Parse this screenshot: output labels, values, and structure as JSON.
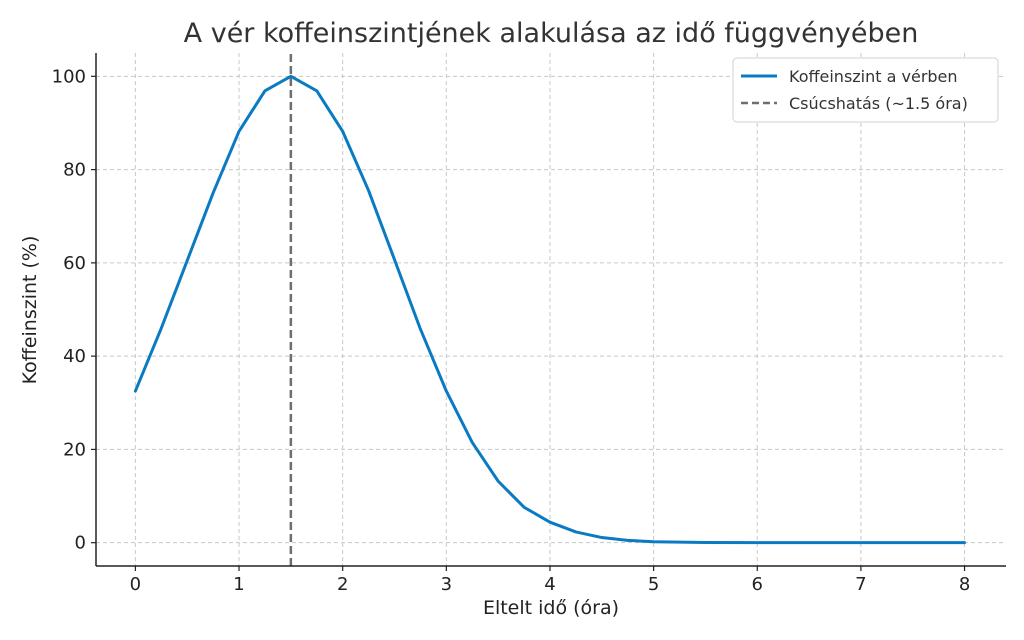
{
  "chart_data": {
    "type": "line",
    "title": "A vér koffeinszintjének alakulása az idő függvényében",
    "xlabel": "Eltelt idő (óra)",
    "ylabel": "Koffeinszint (%)",
    "xlim": [
      -0.38,
      8.4
    ],
    "ylim": [
      -5,
      105
    ],
    "xticks": [
      0,
      1,
      2,
      3,
      4,
      5,
      6,
      7,
      8
    ],
    "yticks": [
      0,
      20,
      40,
      60,
      80,
      100
    ],
    "grid": true,
    "legend_position": "top-right",
    "series": [
      {
        "name": "Koffeinszint a vérben",
        "color": "#0a7bc2",
        "style": "solid",
        "x": [
          0,
          0.25,
          0.5,
          0.75,
          1.0,
          1.25,
          1.5,
          1.75,
          2.0,
          2.25,
          2.5,
          2.75,
          3.0,
          3.25,
          3.5,
          3.75,
          4.0,
          4.25,
          4.5,
          4.75,
          5.0,
          5.5,
          6.0,
          6.5,
          7.0,
          7.5,
          8.0
        ],
        "y": [
          32.5,
          46,
          60.5,
          75,
          88.2,
          96.9,
          100,
          96.9,
          88.2,
          75.5,
          60.7,
          45.8,
          32.5,
          21.5,
          13.2,
          7.6,
          4.4,
          2.3,
          1.1,
          0.5,
          0.2,
          0.05,
          0.0,
          0.0,
          0.0,
          0.0,
          0.0
        ]
      },
      {
        "name": "Csúcshatás (~1.5 óra)",
        "color": "#6e6e6e",
        "style": "dashed",
        "x": [
          1.5,
          1.5
        ],
        "y": [
          -5,
          105
        ]
      }
    ]
  }
}
